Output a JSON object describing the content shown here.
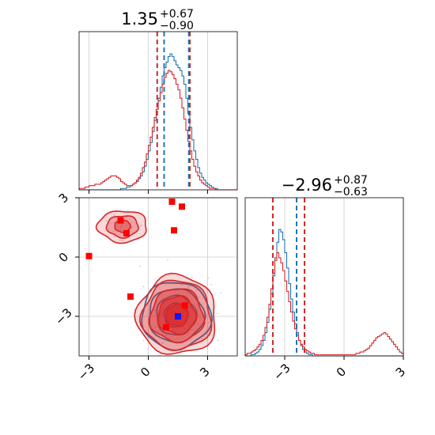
{
  "chart_data": [
    {
      "type": "histogram",
      "panel": "x-marginal",
      "title": {
        "main": "1.35",
        "sup": "+0.67",
        "sub": "−0.90"
      },
      "xlim": [
        -3.5,
        4.5
      ],
      "grid": true,
      "quantile_lines": {
        "blue": [
          0.8,
          2.05
        ],
        "red": [
          0.45,
          2.1
        ]
      },
      "series": [
        {
          "color": "#1f77b4",
          "values": [
            0,
            0,
            0,
            0,
            0,
            0,
            0,
            0,
            0,
            0,
            0,
            0,
            0,
            0,
            0,
            0,
            0,
            0,
            0,
            0,
            0,
            1,
            1,
            1,
            2,
            2,
            3,
            4,
            5,
            6,
            8,
            10,
            13,
            17,
            22,
            28,
            34,
            42,
            50,
            58,
            66,
            74,
            82,
            88,
            92,
            96,
            98,
            96,
            93,
            90,
            88,
            86,
            82,
            76,
            66,
            55,
            45,
            36,
            28,
            22,
            16,
            12,
            9,
            7,
            5,
            4,
            3,
            2,
            1,
            1,
            0,
            0,
            0,
            0,
            0,
            0,
            0,
            0,
            0,
            0
          ]
        },
        {
          "color": "#d62728",
          "values": [
            1,
            1,
            1,
            2,
            2,
            3,
            3,
            3,
            4,
            4,
            4,
            5,
            6,
            7,
            8,
            9,
            10,
            10,
            10,
            9,
            8,
            6,
            5,
            4,
            3,
            3,
            3,
            4,
            5,
            7,
            9,
            12,
            16,
            20,
            26,
            32,
            38,
            45,
            52,
            58,
            64,
            70,
            76,
            81,
            84,
            86,
            85,
            83,
            80,
            76,
            72,
            66,
            59,
            51,
            43,
            35,
            28,
            22,
            17,
            13,
            10,
            7,
            5,
            4,
            3,
            2,
            1,
            1,
            1,
            0,
            0,
            0,
            0,
            0,
            0,
            0,
            0,
            0,
            0,
            0
          ]
        }
      ]
    },
    {
      "type": "histogram",
      "panel": "y-marginal",
      "title": {
        "main": "−2.96",
        "sup": "+0.87",
        "sub": "−0.63"
      },
      "xlim": [
        -5,
        3
      ],
      "xticks": [
        "−3",
        "0",
        "3"
      ],
      "xtick_values": [
        -3,
        0,
        3
      ],
      "grid": true,
      "quantile_lines": {
        "blue": [
          -3.6,
          -2.4
        ],
        "red": [
          -3.6,
          -2.0
        ]
      },
      "series": [
        {
          "color": "#1f77b4",
          "values": [
            0,
            0,
            0,
            1,
            1,
            2,
            3,
            5,
            8,
            12,
            18,
            26,
            36,
            48,
            62,
            76,
            88,
            98,
            96,
            90,
            80,
            68,
            56,
            44,
            34,
            25,
            18,
            12,
            8,
            5,
            3,
            2,
            1,
            1,
            0,
            0,
            0,
            0,
            0,
            0,
            0,
            0,
            0,
            0,
            0,
            0,
            0,
            0,
            0,
            0,
            0,
            0,
            0,
            0,
            0,
            0,
            0,
            0,
            0,
            0,
            0,
            0,
            0,
            0,
            0,
            0,
            0,
            0,
            0,
            0,
            0,
            0,
            0,
            0,
            0,
            0,
            0,
            0,
            0,
            0
          ]
        },
        {
          "color": "#d62728",
          "values": [
            1,
            2,
            2,
            3,
            4,
            5,
            7,
            9,
            12,
            16,
            22,
            30,
            40,
            52,
            64,
            74,
            80,
            76,
            72,
            66,
            58,
            50,
            42,
            34,
            27,
            21,
            16,
            12,
            9,
            7,
            5,
            4,
            3,
            2,
            2,
            1,
            1,
            1,
            1,
            1,
            1,
            1,
            1,
            1,
            1,
            1,
            1,
            1,
            1,
            1,
            1,
            1,
            1,
            1,
            1,
            1,
            2,
            2,
            3,
            3,
            4,
            5,
            6,
            8,
            10,
            12,
            14,
            15,
            16,
            17,
            18,
            17,
            15,
            13,
            11,
            9,
            7,
            5,
            3,
            2
          ]
        }
      ]
    },
    {
      "type": "scatter",
      "panel": "joint",
      "xlim": [
        -3.5,
        4.5
      ],
      "ylim": [
        -5,
        3
      ],
      "xticks": [
        "−3",
        "0",
        "3"
      ],
      "xtick_values": [
        -3,
        0,
        3
      ],
      "yticks": [
        "−3",
        "0",
        "3"
      ],
      "ytick_values": [
        -3,
        0,
        3
      ],
      "grid": true,
      "contours": [
        {
          "color": "#1f77b4",
          "center": [
            1.4,
            -2.95
          ],
          "radii": [
            [
              0.6,
              0.6
            ],
            [
              1.0,
              1.0
            ],
            [
              1.4,
              1.35
            ],
            [
              1.75,
              1.7
            ]
          ]
        },
        {
          "color": "#d62728",
          "center": [
            1.45,
            -2.95
          ],
          "radii": [
            [
              0.55,
              0.55
            ],
            [
              0.95,
              0.95
            ],
            [
              1.35,
              1.35
            ],
            [
              1.75,
              1.75
            ],
            [
              2.0,
              2.0
            ]
          ]
        },
        {
          "color": "#d62728",
          "center": [
            -1.3,
            1.55
          ],
          "radii": [
            [
              0.4,
              0.3
            ],
            [
              0.8,
              0.55
            ],
            [
              1.25,
              0.8
            ]
          ]
        }
      ],
      "points": [
        {
          "x": -3.0,
          "y": 0.05
        },
        {
          "x": -1.4,
          "y": 1.85
        },
        {
          "x": -1.1,
          "y": 1.2
        },
        {
          "x": -0.9,
          "y": -2.0
        },
        {
          "x": 1.2,
          "y": 2.8
        },
        {
          "x": 1.7,
          "y": 2.55
        },
        {
          "x": 1.3,
          "y": 1.35
        },
        {
          "x": 0.9,
          "y": -3.55
        },
        {
          "x": 1.85,
          "y": -2.45
        }
      ],
      "truth": {
        "x": 1.5,
        "y": -3.0
      }
    }
  ]
}
